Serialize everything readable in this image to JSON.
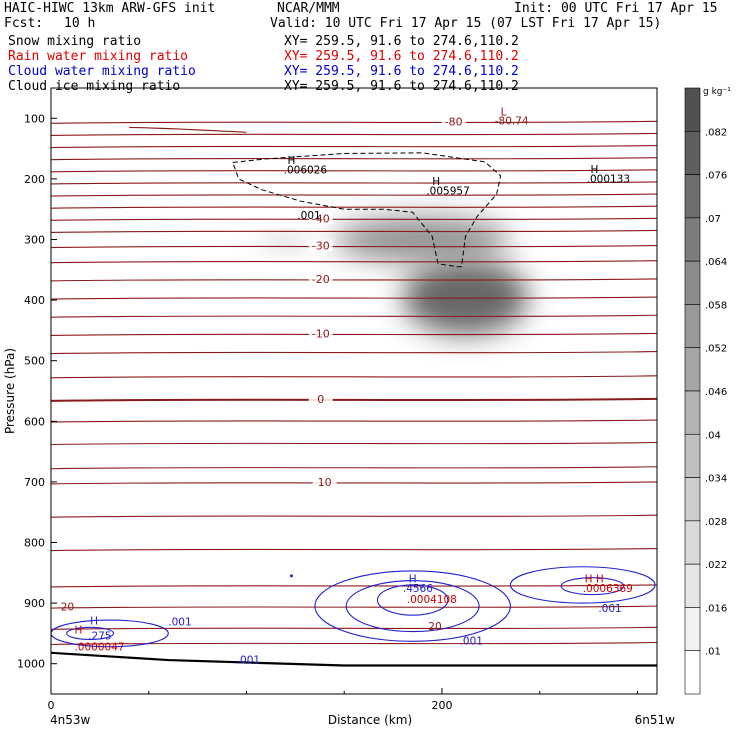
{
  "header": {
    "title_left": "HAIC-HIWC 13km ARW-GFS init",
    "org": "NCAR/MMM",
    "init": "Init: 00 UTC Fri 17 Apr 15",
    "fcst_label": "Fcst:",
    "fcst_value": "10 h",
    "valid": "Valid: 10 UTC Fri 17 Apr 15 (07 LST Fri 17 Apr 15)"
  },
  "fields": [
    {
      "name": "Snow mixing ratio",
      "xy": "XY= 259.5, 91.6 to 274.6,110.2",
      "color": "#000000"
    },
    {
      "name": "Rain water mixing ratio",
      "xy": "XY= 259.5, 91.6 to 274.6,110.2",
      "color": "#e00000"
    },
    {
      "name": "Cloud water mixing ratio",
      "xy": "XY= 259.5, 91.6 to 274.6,110.2",
      "color": "#0000cc"
    },
    {
      "name": "Cloud ice mixing ratio",
      "xy": "XY= 259.5, 91.6 to 274.6,110.2",
      "color": "#000000"
    }
  ],
  "colors": {
    "temperature": "#8b1a1a",
    "cloud_water": "#2222cc",
    "rain": "#cc0000",
    "ice": "#000000"
  },
  "chart_data": {
    "type": "heatmap",
    "xlabel": "Distance (km)",
    "ylabel": "Pressure (hPa)",
    "xlim": [
      0,
      310
    ],
    "ylim": [
      50,
      1050
    ],
    "x_ticks": [
      0,
      200
    ],
    "y_ticks": [
      100,
      200,
      300,
      400,
      500,
      600,
      700,
      800,
      900,
      1000
    ],
    "x_end_labels": {
      "left": "4n53w",
      "right": "6n51w"
    },
    "colorbar": {
      "unit": "g kg⁻¹",
      "levels": [
        ".01",
        ".016",
        ".022",
        ".028",
        ".034",
        ".04",
        ".046",
        ".052",
        ".058",
        ".064",
        ".07",
        ".076",
        ".082"
      ],
      "grays": [
        "#ffffff",
        "#f2f2f2",
        "#e6e6e6",
        "#dadada",
        "#cdcdcd",
        "#c0c0c0",
        "#b3b3b3",
        "#a6a6a6",
        "#999999",
        "#8c8c8c",
        "#7d7d7d",
        "#6e6e6e",
        "#5f5f5f",
        "#515151"
      ]
    },
    "shaded_blobs": [
      {
        "x": 212,
        "p": 395,
        "rx": 32,
        "rp": 62,
        "peak": 0.085
      },
      {
        "x": 190,
        "p": 300,
        "rx": 45,
        "rp": 38,
        "peak": 0.06
      },
      {
        "x": 120,
        "p": 305,
        "rx": 14,
        "rp": 12,
        "peak": 0.03
      }
    ],
    "temperature_isotherms": [
      {
        "p": 105,
        "label": "-80"
      },
      {
        "p": 125
      },
      {
        "p": 145
      },
      {
        "p": 165
      },
      {
        "p": 185
      },
      {
        "p": 205
      },
      {
        "p": 225
      },
      {
        "p": 245
      },
      {
        "p": 265,
        "label": "-40"
      },
      {
        "p": 285
      },
      {
        "p": 310,
        "label": "-30"
      },
      {
        "p": 335
      },
      {
        "p": 365,
        "label": "-20"
      },
      {
        "p": 395
      },
      {
        "p": 425
      },
      {
        "p": 455,
        "label": "-10"
      },
      {
        "p": 485
      },
      {
        "p": 525
      },
      {
        "p": 563,
        "label": "0",
        "bold": true
      },
      {
        "p": 598
      },
      {
        "p": 635
      },
      {
        "p": 675
      },
      {
        "p": 700,
        "label": "10"
      },
      {
        "p": 755
      },
      {
        "p": 810
      },
      {
        "p": 870
      },
      {
        "p": 905
      },
      {
        "p": 940
      },
      {
        "p": 965
      }
    ],
    "annotations": [
      {
        "text": "L",
        "x": 230,
        "p": 95,
        "color": "#8b1a1a"
      },
      {
        "text": "-80.74",
        "x": 227,
        "p": 110,
        "color": "#8b1a1a"
      },
      {
        "text": "H",
        "x": 121,
        "p": 175,
        "color": "#000000"
      },
      {
        "text": ".006026",
        "x": 119,
        "p": 191,
        "color": "#000000"
      },
      {
        "text": "H",
        "x": 195,
        "p": 210,
        "color": "#000000"
      },
      {
        "text": ".005957",
        "x": 192,
        "p": 226,
        "color": "#000000"
      },
      {
        "text": "H",
        "x": 276,
        "p": 190,
        "color": "#000000"
      },
      {
        "text": ".000133",
        "x": 274,
        "p": 206,
        "color": "#000000"
      },
      {
        "text": ".001",
        "x": 126,
        "p": 266,
        "color": "#000000"
      },
      {
        "text": "H",
        "x": 183,
        "p": 866,
        "color": "#2222cc"
      },
      {
        "text": ".4566",
        "x": 180,
        "p": 882,
        "color": "#2222cc"
      },
      {
        "text": ".0004108",
        "x": 182,
        "p": 900,
        "color": "#cc0000"
      },
      {
        "text": "H H",
        "x": 273,
        "p": 866,
        "color": "#cc0000"
      },
      {
        "text": ".0006369",
        "x": 272,
        "p": 882,
        "color": "#cc0000"
      },
      {
        "text": ".001",
        "x": 280,
        "p": 915,
        "color": "#2222cc"
      },
      {
        "text": ".001",
        "x": 209,
        "p": 968,
        "color": "#2222cc"
      },
      {
        "text": "20",
        "x": 193,
        "p": 944,
        "color": "#8b1a1a"
      },
      {
        "text": "20",
        "x": 5,
        "p": 912,
        "color": "#8b1a1a"
      },
      {
        "text": "H",
        "x": 20,
        "p": 935,
        "color": "#2222cc"
      },
      {
        "text": "H",
        "x": 12,
        "p": 950,
        "color": "#cc0000"
      },
      {
        "text": ".275",
        "x": 19,
        "p": 960,
        "color": "#2222cc"
      },
      {
        "text": ".0000047",
        "x": 12,
        "p": 978,
        "color": "#cc0000"
      },
      {
        "text": ".001",
        "x": 60,
        "p": 937,
        "color": "#2222cc"
      },
      {
        "text": ".001",
        "x": 95,
        "p": 1000,
        "color": "#2222cc"
      }
    ],
    "cloud_water_contours": [
      {
        "x": 185,
        "p": 905,
        "rx": 50,
        "rp": 58
      },
      {
        "x": 185,
        "p": 905,
        "rx": 34,
        "rp": 42
      },
      {
        "x": 185,
        "p": 895,
        "rx": 18,
        "rp": 25
      },
      {
        "x": 272,
        "p": 870,
        "rx": 37,
        "rp": 30
      },
      {
        "x": 277,
        "p": 872,
        "rx": 16,
        "rp": 14
      },
      {
        "x": 30,
        "p": 950,
        "rx": 30,
        "rp": 22
      },
      {
        "x": 20,
        "p": 950,
        "rx": 12,
        "rp": 10
      }
    ],
    "ice_contour_dashed": [
      [
        93,
        173
      ],
      [
        110,
        167
      ],
      [
        150,
        158
      ],
      [
        190,
        157
      ],
      [
        222,
        172
      ],
      [
        230,
        195
      ],
      [
        228,
        225
      ],
      [
        218,
        262
      ],
      [
        212,
        295
      ],
      [
        210,
        345
      ],
      [
        208,
        345
      ],
      [
        198,
        340
      ],
      [
        195,
        295
      ],
      [
        185,
        255
      ],
      [
        170,
        250
      ],
      [
        150,
        250
      ],
      [
        128,
        237
      ],
      [
        108,
        218
      ],
      [
        96,
        200
      ],
      [
        93,
        173
      ]
    ],
    "terrain": [
      [
        0,
        982
      ],
      [
        60,
        994
      ],
      [
        150,
        1003
      ],
      [
        250,
        1003
      ],
      [
        310,
        1003
      ]
    ]
  }
}
